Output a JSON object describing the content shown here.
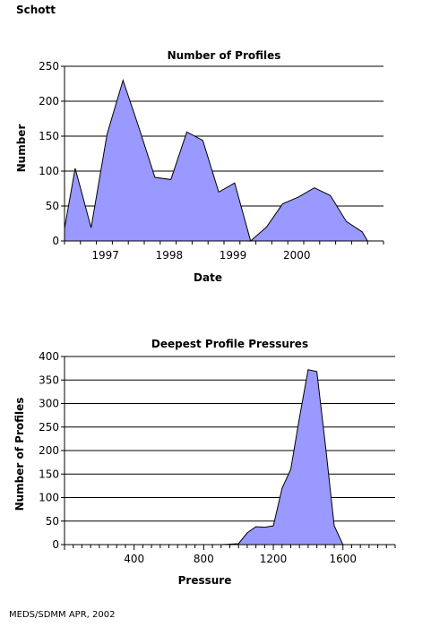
{
  "platform_label": "Schott",
  "footer": "MEDS/SDMM APR, 2002",
  "colors": {
    "fill": "#9999ff",
    "line": "#000000",
    "grid": "#000000"
  },
  "chart_data": [
    {
      "type": "area",
      "title": "Number of Profiles",
      "xlabel": "Date",
      "ylabel": "Number",
      "ylim": [
        0,
        250
      ],
      "yticks": [
        0,
        50,
        100,
        150,
        200,
        250
      ],
      "xlim": [
        "1996-08",
        "2001-08"
      ],
      "xtick_labels": [
        {
          "label": "1997",
          "x": "1997-01"
        },
        {
          "label": "1998",
          "x": "1998-01"
        },
        {
          "label": "1999",
          "x": "1999-01"
        },
        {
          "label": "2000",
          "x": "2000-01"
        }
      ],
      "grid": true,
      "points": [
        {
          "x": "1996-08",
          "y": 18
        },
        {
          "x": "1996-10",
          "y": 104
        },
        {
          "x": "1997-01",
          "y": 19
        },
        {
          "x": "1997-04",
          "y": 153
        },
        {
          "x": "1997-07",
          "y": 230
        },
        {
          "x": "1997-10",
          "y": 162
        },
        {
          "x": "1998-01",
          "y": 91
        },
        {
          "x": "1998-04",
          "y": 88
        },
        {
          "x": "1998-07",
          "y": 156
        },
        {
          "x": "1998-10",
          "y": 144
        },
        {
          "x": "1999-01",
          "y": 70
        },
        {
          "x": "1999-04",
          "y": 83
        },
        {
          "x": "1999-07",
          "y": 0
        },
        {
          "x": "1999-10",
          "y": 20
        },
        {
          "x": "2000-01",
          "y": 53
        },
        {
          "x": "2000-04",
          "y": 63
        },
        {
          "x": "2000-07",
          "y": 76
        },
        {
          "x": "2000-10",
          "y": 65
        },
        {
          "x": "2001-01",
          "y": 28
        },
        {
          "x": "2001-04",
          "y": 13
        },
        {
          "x": "2001-05",
          "y": 0
        }
      ]
    },
    {
      "type": "area",
      "title": "Deepest Profile Pressures",
      "xlabel": "Pressure",
      "ylabel": "Number of Profiles",
      "ylim": [
        0,
        400
      ],
      "yticks": [
        0,
        50,
        100,
        150,
        200,
        250,
        300,
        350,
        400
      ],
      "xlim": [
        0,
        1900
      ],
      "xtick_labels": [
        400,
        800,
        1200,
        1600
      ],
      "minor_tick_step": 50,
      "grid": true,
      "points": [
        {
          "x": 900,
          "y": 0
        },
        {
          "x": 950,
          "y": 1
        },
        {
          "x": 1000,
          "y": 2
        },
        {
          "x": 1050,
          "y": 25
        },
        {
          "x": 1100,
          "y": 38
        },
        {
          "x": 1150,
          "y": 37
        },
        {
          "x": 1200,
          "y": 40
        },
        {
          "x": 1250,
          "y": 120
        },
        {
          "x": 1300,
          "y": 160
        },
        {
          "x": 1350,
          "y": 270
        },
        {
          "x": 1400,
          "y": 372
        },
        {
          "x": 1450,
          "y": 368
        },
        {
          "x": 1500,
          "y": 210
        },
        {
          "x": 1550,
          "y": 40
        },
        {
          "x": 1600,
          "y": 0
        }
      ]
    }
  ]
}
